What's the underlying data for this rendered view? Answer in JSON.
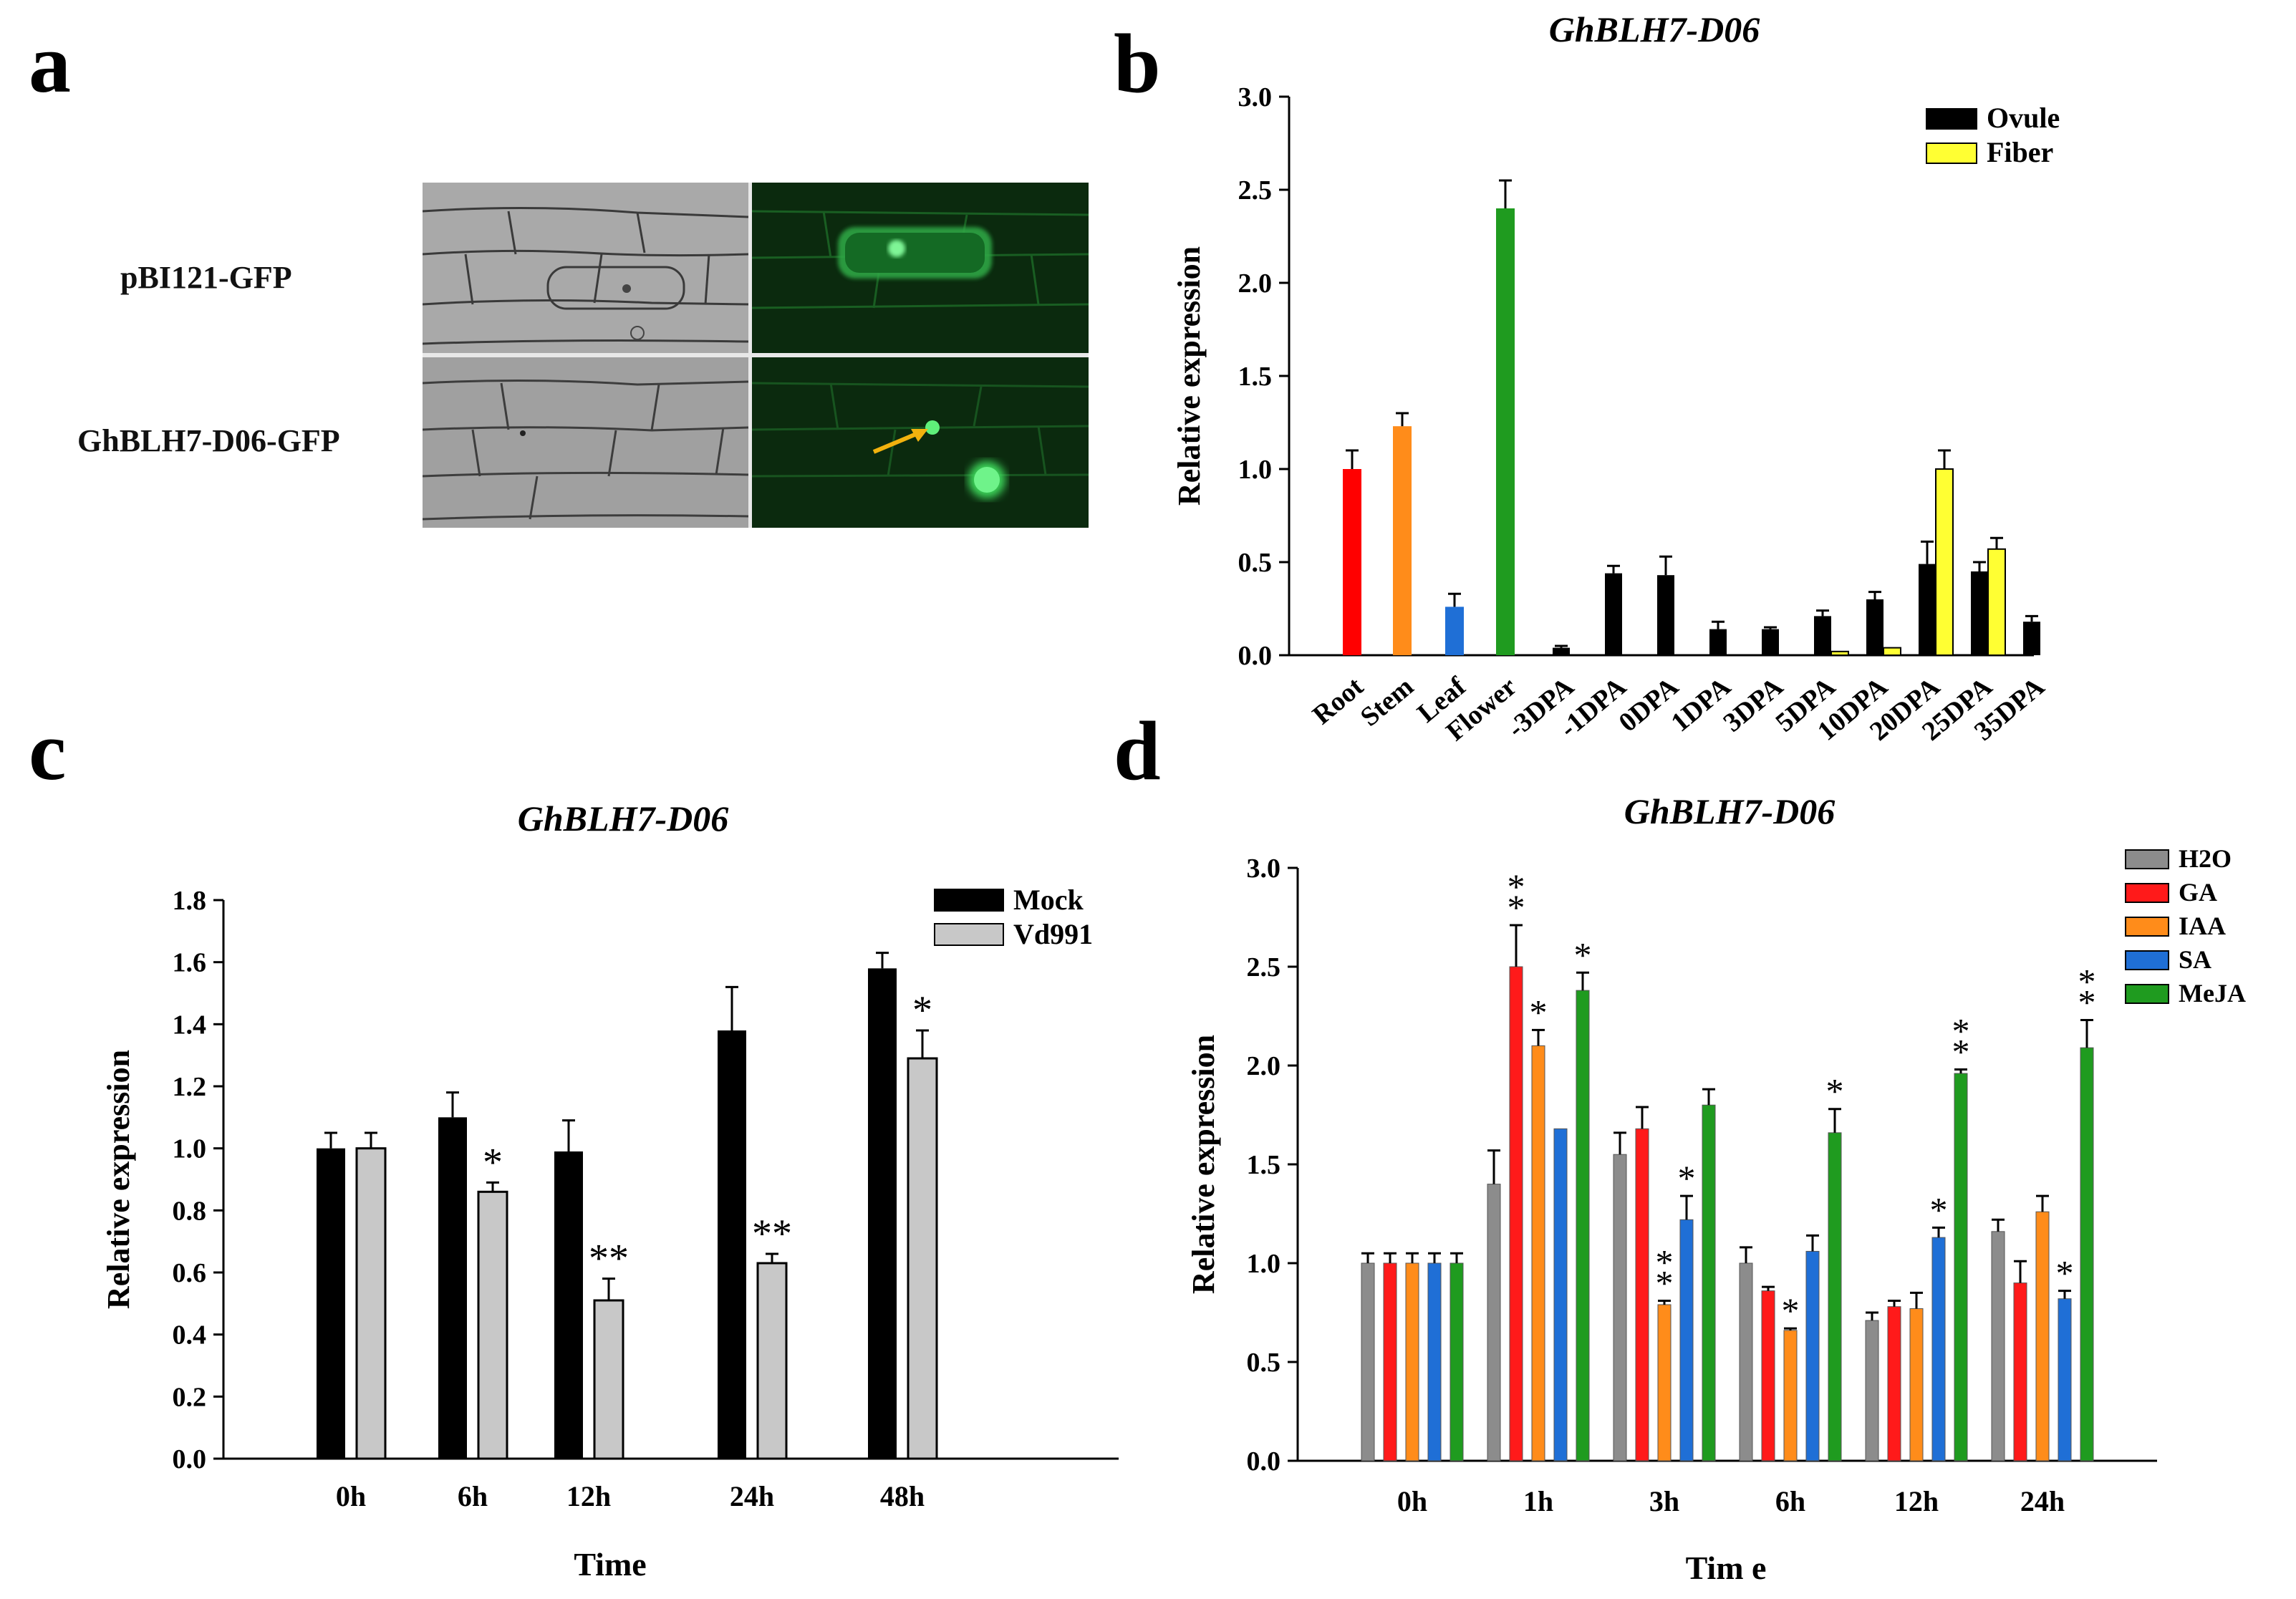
{
  "panels": {
    "a": {
      "letter": "a",
      "rows": [
        {
          "label": "pBI121-GFP"
        },
        {
          "label": "GhBLH7-D06-GFP"
        }
      ],
      "colors": {
        "brightfield": "#a9a9a9",
        "fluorescence": "#0b2a0e",
        "gfp": "#4fe26a",
        "arrow": "#f2b20e"
      }
    },
    "b": {
      "letter": "b"
    },
    "c": {
      "letter": "c"
    },
    "d": {
      "letter": "d"
    }
  },
  "chart_data": [
    {
      "id": "b",
      "type": "bar",
      "title": "GhBLH7-D06",
      "xlabel": "",
      "ylabel": "Relative expression",
      "ylim": [
        0,
        3.0
      ],
      "yticks": [
        "0.0",
        "0.5",
        "1.0",
        "1.5",
        "2.0",
        "2.5",
        "3.0"
      ],
      "tissues": [
        {
          "category": "Root",
          "value": 1.0,
          "error": 0.1,
          "color": "#ff0000"
        },
        {
          "category": "Stem",
          "value": 1.23,
          "error": 0.07,
          "color": "#ff8c1a"
        },
        {
          "category": "Leaf",
          "value": 0.26,
          "error": 0.07,
          "color": "#1f6fd6"
        },
        {
          "category": "Flower",
          "value": 2.4,
          "error": 0.15,
          "color": "#1f9b1f"
        }
      ],
      "categories": [
        "-3DPA",
        "-1DPA",
        "0DPA",
        "1DPA",
        "3DPA",
        "5DPA",
        "10DPA",
        "20DPA",
        "25DPA",
        "35DPA"
      ],
      "series": [
        {
          "name": "Ovule",
          "color": "#000000",
          "values": [
            0.04,
            0.44,
            0.43,
            0.14,
            0.14,
            0.21,
            0.3,
            0.49,
            0.45,
            0.18
          ],
          "errors": [
            0.01,
            0.04,
            0.1,
            0.04,
            0.01,
            0.03,
            0.04,
            0.12,
            0.05,
            0.03
          ]
        },
        {
          "name": "Fiber",
          "color": "#ffff33",
          "values": [
            null,
            null,
            null,
            null,
            null,
            0.02,
            0.04,
            1.0,
            0.57,
            null
          ],
          "errors": [
            null,
            null,
            null,
            null,
            null,
            0.0,
            0.0,
            0.1,
            0.06,
            null
          ]
        }
      ],
      "legend": "top-right"
    },
    {
      "id": "c",
      "type": "bar",
      "title": "GhBLH7-D06",
      "xlabel": "Time",
      "ylabel": "Relative expression",
      "ylim": [
        0,
        1.8
      ],
      "yticks": [
        "0.0",
        "0.2",
        "0.4",
        "0.6",
        "0.8",
        "1.0",
        "1.2",
        "1.4",
        "1.6",
        "1.8"
      ],
      "categories": [
        "0h",
        "6h",
        "12h",
        "24h",
        "48h"
      ],
      "series": [
        {
          "name": "Mock",
          "color": "#000000",
          "values": [
            1.0,
            1.1,
            0.99,
            1.38,
            1.58
          ],
          "errors": [
            0.05,
            0.08,
            0.1,
            0.14,
            0.05
          ],
          "sig": [
            "",
            "",
            "",
            "",
            ""
          ]
        },
        {
          "name": "Vd991",
          "color": "#c8c8c8",
          "values": [
            1.0,
            0.86,
            0.51,
            0.63,
            1.29
          ],
          "errors": [
            0.05,
            0.03,
            0.07,
            0.03,
            0.09
          ],
          "sig": [
            "",
            "*",
            "**",
            "**",
            "*"
          ]
        }
      ],
      "legend": "top-right"
    },
    {
      "id": "d",
      "type": "bar",
      "title": "GhBLH7-D06",
      "xlabel": "Tim e",
      "ylabel": "Relative expression",
      "ylim": [
        0,
        3.0
      ],
      "yticks": [
        "0.0",
        "0.5",
        "1.0",
        "1.5",
        "2.0",
        "2.5",
        "3.0"
      ],
      "categories": [
        "0h",
        "1h",
        "3h",
        "6h",
        "12h",
        "24h"
      ],
      "series": [
        {
          "name": "H2O",
          "color": "#8c8c8c",
          "values": [
            1.0,
            1.4,
            1.55,
            1.0,
            0.71,
            1.16
          ],
          "errors": [
            0.05,
            0.17,
            0.11,
            0.08,
            0.04,
            0.06
          ],
          "sig": [
            "",
            "",
            "",
            "",
            "",
            ""
          ]
        },
        {
          "name": "GA",
          "color": "#ff1a1a",
          "values": [
            1.0,
            2.5,
            1.68,
            0.86,
            0.78,
            0.9
          ],
          "errors": [
            0.05,
            0.21,
            0.11,
            0.02,
            0.03,
            0.11
          ],
          "sig": [
            "",
            "**",
            "",
            "",
            "",
            ""
          ]
        },
        {
          "name": "IAA",
          "color": "#ff8c1a",
          "values": [
            1.0,
            2.1,
            0.79,
            0.66,
            0.77,
            1.26
          ],
          "errors": [
            0.05,
            0.08,
            0.02,
            0.01,
            0.08,
            0.08
          ],
          "sig": [
            "",
            "*",
            "**",
            "*",
            "",
            ""
          ]
        },
        {
          "name": "SA",
          "color": "#1f6fd6",
          "values": [
            1.0,
            1.68,
            1.22,
            1.06,
            1.13,
            0.82
          ],
          "errors": [
            0.05,
            0.0,
            0.12,
            0.08,
            0.05,
            0.04
          ],
          "sig": [
            "",
            "",
            "*",
            "",
            "*",
            "*"
          ]
        },
        {
          "name": "MeJA",
          "color": "#1f9b1f",
          "values": [
            1.0,
            2.38,
            1.8,
            1.66,
            1.96,
            2.09
          ],
          "errors": [
            0.05,
            0.09,
            0.08,
            0.12,
            0.02,
            0.14
          ],
          "sig": [
            "",
            "*",
            "",
            "*",
            "**",
            "**"
          ]
        }
      ],
      "legend": "top-right"
    }
  ]
}
